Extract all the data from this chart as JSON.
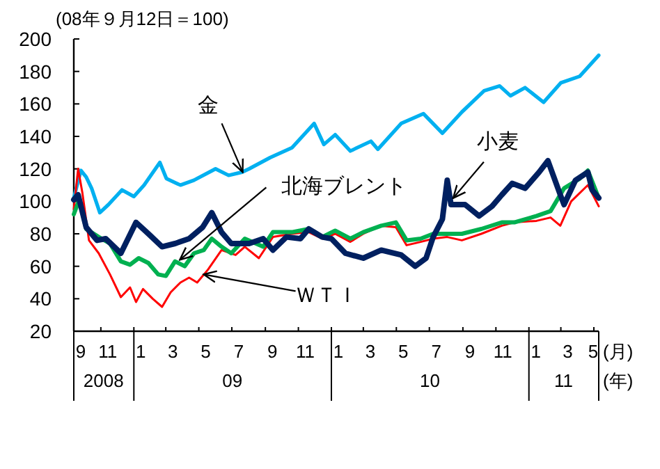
{
  "chart_data": {
    "type": "line",
    "ylabel": "(08年９月12日＝100)",
    "xlabel": "(月)",
    "x2label": "(年)",
    "xlim": [
      "2008-09-12",
      "2011-05-10"
    ],
    "ylim": [
      20,
      200
    ],
    "yticks": [
      20,
      40,
      60,
      80,
      100,
      120,
      140,
      160,
      180,
      200
    ],
    "xticks": [
      {
        "value": "2008-09-12",
        "label": "9"
      },
      {
        "value": "2008-11",
        "label": "11"
      },
      {
        "value": "2009-01",
        "label": "1"
      },
      {
        "value": "2009-03",
        "label": "3"
      },
      {
        "value": "2009-05",
        "label": "5"
      },
      {
        "value": "2009-07",
        "label": "7"
      },
      {
        "value": "2009-09",
        "label": "9"
      },
      {
        "value": "2009-11",
        "label": "11"
      },
      {
        "value": "2010-01",
        "label": "1"
      },
      {
        "value": "2010-03",
        "label": "3"
      },
      {
        "value": "2010-05",
        "label": "5"
      },
      {
        "value": "2010-07",
        "label": "7"
      },
      {
        "value": "2010-09",
        "label": "9"
      },
      {
        "value": "2010-11",
        "label": "11"
      },
      {
        "value": "2011-01",
        "label": "1"
      },
      {
        "value": "2011-03",
        "label": "3"
      },
      {
        "value": "2011-05",
        "label": "5"
      }
    ],
    "x2lim": [
      "2008-09-12",
      "2011-05-10"
    ],
    "x2ticks": [
      {
        "value": "2008-11-06",
        "label": "2008"
      },
      {
        "value": "2009-01",
        "label": null
      },
      {
        "value": "2009-07-02",
        "label": "09"
      },
      {
        "value": "2010-01",
        "label": null
      },
      {
        "value": "2010-07-02",
        "label": "10"
      },
      {
        "value": "2011-01",
        "label": null
      },
      {
        "value": "2011-03-06",
        "label": "11"
      }
    ],
    "series": [
      {
        "color": "#00b0f0",
        "x": [
          "2008-09-12",
          "2008-09-25",
          "2008-10-05",
          "2008-10-15",
          "2008-10-30",
          "2008-11-15",
          "2008-12-10",
          "2009-01-01",
          "2009-01-20",
          "2009-02-18",
          "2009-03-02",
          "2009-03-28",
          "2009-04-22",
          "2009-06-01",
          "2009-06-25",
          "2009-07-20",
          "2009-08-02",
          "2009-09-10",
          "2009-10-20",
          "2009-11-30",
          "2009-12-18",
          "2010-01-08",
          "2010-02-05",
          "2010-03-15",
          "2010-03-28",
          "2010-05-10",
          "2010-06-20",
          "2010-07-25",
          "2010-08-30",
          "2010-10-10",
          "2010-11-08",
          "2010-11-28",
          "2010-12-25",
          "2011-01-28",
          "2011-03-01",
          "2011-04-05",
          "2011-05-10"
        ],
        "values": [
          102,
          119,
          115,
          108,
          93,
          98,
          107,
          103,
          110,
          124,
          114,
          110,
          113,
          120,
          116,
          118,
          120,
          127,
          133,
          148,
          135,
          141,
          131,
          137,
          132,
          148,
          154,
          142,
          155,
          168,
          171,
          165,
          170,
          161,
          173,
          177,
          190
        ]
      },
      {
        "color": "#ff0000",
        "x": [
          "2008-09-12",
          "2008-09-20",
          "2008-09-28",
          "2008-10-10",
          "2008-10-28",
          "2008-11-18",
          "2008-12-08",
          "2008-12-25",
          "2009-01-05",
          "2009-01-18",
          "2009-02-05",
          "2009-02-22",
          "2009-03-10",
          "2009-03-28",
          "2009-04-13",
          "2009-04-28",
          "2009-05-18",
          "2009-06-12",
          "2009-07-08",
          "2009-07-25",
          "2009-08-20",
          "2009-09-15",
          "2009-10-20",
          "2009-11-20",
          "2009-12-15",
          "2010-01-08",
          "2010-02-05",
          "2010-03-01",
          "2010-04-03",
          "2010-04-30",
          "2010-05-20",
          "2010-06-15",
          "2010-07-08",
          "2010-08-03",
          "2010-08-30",
          "2010-10-05",
          "2010-11-12",
          "2010-12-05",
          "2011-01-15",
          "2011-02-10",
          "2011-02-28",
          "2011-03-20",
          "2011-04-20",
          "2011-05-10"
        ],
        "values": [
          95,
          120,
          105,
          76,
          68,
          55,
          41,
          47,
          38,
          46,
          40,
          35,
          44,
          50,
          53,
          50,
          58,
          70,
          67,
          72,
          65,
          78,
          80,
          81,
          77,
          80,
          75,
          80,
          85,
          84,
          73,
          75,
          77,
          78,
          76,
          80,
          85,
          87,
          88,
          90,
          85,
          100,
          110,
          97
        ]
      },
      {
        "color": "#00b050",
        "x": [
          "2008-09-12",
          "2008-09-22",
          "2008-10-05",
          "2008-10-28",
          "2008-11-18",
          "2008-12-08",
          "2008-12-25",
          "2009-01-10",
          "2009-01-28",
          "2009-02-15",
          "2009-03-01",
          "2009-03-18",
          "2009-04-05",
          "2009-04-22",
          "2009-05-10",
          "2009-05-25",
          "2009-06-12",
          "2009-06-30",
          "2009-07-25",
          "2009-08-28",
          "2009-09-15",
          "2009-10-20",
          "2009-11-20",
          "2009-12-15",
          "2010-01-08",
          "2010-02-05",
          "2010-03-01",
          "2010-04-03",
          "2010-04-30",
          "2010-05-20",
          "2010-06-15",
          "2010-07-08",
          "2010-08-03",
          "2010-08-30",
          "2010-10-05",
          "2010-11-12",
          "2010-12-05",
          "2011-01-15",
          "2011-02-10",
          "2011-03-07",
          "2011-04-05",
          "2011-04-20",
          "2011-05-10"
        ],
        "values": [
          92,
          101,
          83,
          78,
          74,
          63,
          61,
          65,
          62,
          55,
          54,
          63,
          60,
          68,
          70,
          77,
          72,
          68,
          77,
          72,
          81,
          81,
          83,
          78,
          82,
          77,
          81,
          85,
          87,
          76,
          77,
          80,
          80,
          80,
          83,
          87,
          87,
          91,
          94,
          108,
          114,
          119,
          102
        ]
      },
      {
        "color": "#002060",
        "x": [
          "2008-09-12",
          "2008-09-20",
          "2008-10-05",
          "2008-10-25",
          "2008-11-10",
          "2008-12-08",
          "2009-01-05",
          "2009-01-28",
          "2009-02-22",
          "2009-03-18",
          "2009-04-13",
          "2009-05-08",
          "2009-05-25",
          "2009-06-12",
          "2009-06-30",
          "2009-08-02",
          "2009-08-28",
          "2009-09-15",
          "2009-10-10",
          "2009-11-05",
          "2009-11-20",
          "2009-12-15",
          "2010-01-01",
          "2010-01-27",
          "2010-03-01",
          "2010-04-03",
          "2010-05-10",
          "2010-06-05",
          "2010-06-25",
          "2010-07-08",
          "2010-07-25",
          "2010-08-03",
          "2010-08-10",
          "2010-09-05",
          "2010-10-01",
          "2010-10-25",
          "2010-11-12",
          "2010-12-01",
          "2010-12-25",
          "2011-01-20",
          "2011-02-05",
          "2011-02-28",
          "2011-03-07",
          "2011-03-28",
          "2011-04-20",
          "2011-04-28",
          "2011-05-10"
        ],
        "values": [
          101,
          104,
          84,
          76,
          77,
          68,
          87,
          80,
          72,
          74,
          77,
          84,
          93,
          81,
          74,
          74,
          77,
          70,
          78,
          77,
          83,
          78,
          77,
          68,
          65,
          70,
          67,
          60,
          65,
          78,
          89,
          113,
          98,
          98,
          91,
          97,
          104,
          111,
          108,
          118,
          125,
          104,
          98,
          113,
          118,
          107,
          102
        ]
      }
    ],
    "annotations": [
      {
        "text": "金",
        "x": "2009-07-21",
        "y": 118
      },
      {
        "text": "北海ブレント",
        "x": "2009-03-27",
        "y": 64
      },
      {
        "text": "ＷＴＩ",
        "x": "2009-05-10",
        "y": 55
      },
      {
        "text": "小麦",
        "x": "2010-08-14",
        "y": 102
      }
    ]
  }
}
